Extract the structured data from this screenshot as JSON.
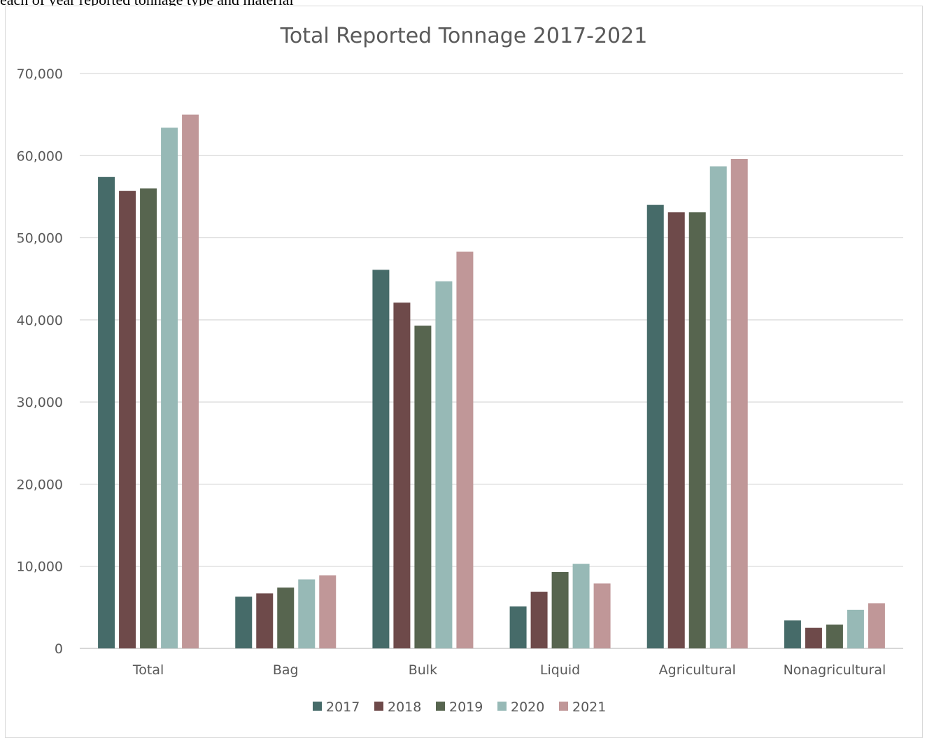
{
  "page": {
    "top_text": "each of year reported tonnage type and material"
  },
  "chart_data": {
    "type": "bar",
    "title": "Total Reported Tonnage 2017-2021",
    "xlabel": "",
    "ylabel": "",
    "categories": [
      "Total",
      "Bag",
      "Bulk",
      "Liquid",
      "Agricultural",
      "Nonagricultural"
    ],
    "ylim": [
      0,
      70000
    ],
    "yticks": [
      0,
      10000,
      20000,
      30000,
      40000,
      50000,
      60000,
      70000
    ],
    "ytick_labels": [
      "0",
      "10,000",
      "20,000",
      "30,000",
      "40,000",
      "50,000",
      "60,000",
      "70,000"
    ],
    "grid": true,
    "legend_position": "bottom",
    "series": [
      {
        "name": "2017",
        "color": "#466b69",
        "values": [
          57400,
          6300,
          46100,
          5100,
          54000,
          3400
        ]
      },
      {
        "name": "2018",
        "color": "#6e4a4a",
        "values": [
          55700,
          6700,
          42100,
          6900,
          53100,
          2500
        ]
      },
      {
        "name": "2019",
        "color": "#57654f",
        "values": [
          56000,
          7400,
          39300,
          9300,
          53100,
          2900
        ]
      },
      {
        "name": "2020",
        "color": "#97b9b6",
        "values": [
          63400,
          8400,
          44700,
          10300,
          58700,
          4700
        ]
      },
      {
        "name": "2021",
        "color": "#c09798",
        "values": [
          65000,
          8900,
          48300,
          7900,
          59600,
          5500
        ]
      }
    ]
  }
}
